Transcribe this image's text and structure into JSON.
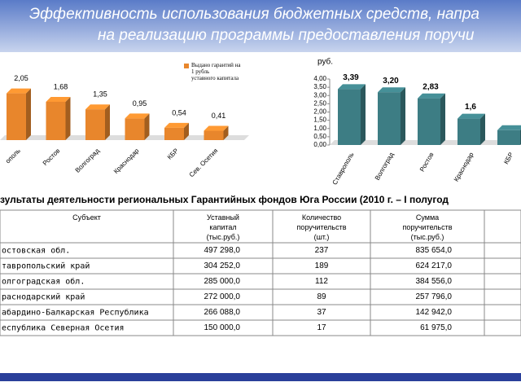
{
  "header": {
    "lines": [
      "Эффективность использования бюджетных средств, напра",
      "на реализацию программы предоставления поручи"
    ]
  },
  "chart_data": [
    {
      "type": "bar",
      "categories": [
        "ополь",
        "Ростов",
        "Волгоград",
        "Краснодар",
        "КБР",
        "Сев. Осетия"
      ],
      "series": [
        {
          "name": "Выдано гарантий на 1 рубль уставного капитала",
          "color": "#e8862c",
          "values": [
            2.05,
            1.68,
            1.35,
            0.95,
            0.54,
            0.41
          ],
          "value_labels": [
            "2,05",
            "1,68",
            "1,35",
            "0,95",
            "0,54",
            "0,41"
          ]
        }
      ]
    },
    {
      "type": "bar",
      "ylabel": "руб.",
      "categories": [
        "Ставрополь",
        "Волгоград",
        "Ростов",
        "Краснодар",
        "КБР"
      ],
      "series": [
        {
          "color": "#3d7d84",
          "values": [
            3.39,
            3.2,
            2.83,
            1.6,
            0.9
          ],
          "value_labels": [
            "3,39",
            "3,20",
            "2,83",
            "1,6",
            null
          ]
        }
      ],
      "ylim": [
        0,
        4
      ],
      "yticks": [
        {
          "value": 0,
          "label": "0,00"
        },
        {
          "value": 0.5,
          "label": "0,50"
        },
        {
          "value": 1,
          "label": "1,00"
        },
        {
          "value": 1.5,
          "label": "1,50"
        },
        {
          "value": 2,
          "label": "2,00"
        },
        {
          "value": 2.5,
          "label": "2,50"
        },
        {
          "value": 3,
          "label": "3,00"
        },
        {
          "value": 3.5,
          "label": "3,50"
        },
        {
          "value": 4,
          "label": "4,00"
        }
      ]
    }
  ],
  "table": {
    "title": "зультаты деятельности региональных Гарантийных фондов Юга России  (2010 г. – I полугод",
    "header": [
      "Субъект",
      "Уставный капитал (тыс.руб.)",
      "Количество поручительств (шт.)",
      "Сумма поручительств (тыс.руб.)"
    ],
    "rows": [
      [
        "остовская обл.",
        "497 298,0",
        "237",
        "835 654,0"
      ],
      [
        "тавропольский край",
        "304 252,0",
        "189",
        "624 217,0"
      ],
      [
        "олгоградская обл.",
        "285 000,0",
        "112",
        "384 556,0"
      ],
      [
        "раснодарский край",
        "272 000,0",
        "89",
        "257 796,0"
      ],
      [
        "абардино-Балкарская Республика",
        "266 088,0",
        "37",
        "142 942,0"
      ],
      [
        "еспублика Северная Осетия",
        "150 000,0",
        "17",
        "61 975,0"
      ]
    ]
  }
}
